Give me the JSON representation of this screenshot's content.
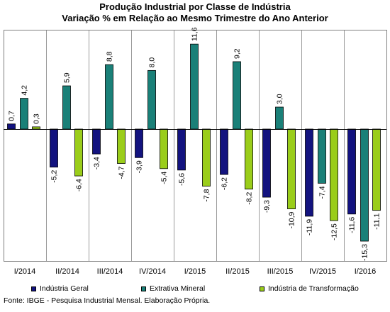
{
  "chart_data": {
    "type": "bar",
    "title": "Produção Industrial por Classe de Indústria",
    "subtitle": "Variação % em Relação ao Mesmo Trimestre do Ano Anterior",
    "categories": [
      "I/2014",
      "II/2014",
      "III/2014",
      "IV/2014",
      "I/2015",
      "II/2015",
      "III/2015",
      "IV/2015",
      "I/2016"
    ],
    "series": [
      {
        "name": "Indústria Geral",
        "color": "#13137f",
        "values": [
          0.7,
          -5.2,
          -3.4,
          -3.9,
          -5.6,
          -6.2,
          -9.3,
          -11.9,
          -11.6
        ],
        "labels": [
          "0,7",
          "-5,2",
          "-3,4",
          "-3,9",
          "-5,6",
          "-6,2",
          "-9,3",
          "-11,9",
          "-11,6"
        ]
      },
      {
        "name": "Extrativa Mineral",
        "color": "#1a8078",
        "values": [
          4.2,
          5.9,
          8.8,
          8.0,
          11.6,
          9.2,
          3.0,
          -7.4,
          -15.3
        ],
        "labels": [
          "4,2",
          "5,9",
          "8,8",
          "8,0",
          "11,6",
          "9,2",
          "3,0",
          "-7,4",
          "-15,3"
        ]
      },
      {
        "name": "Indústria de Transformação",
        "color": "#9acd1a",
        "values": [
          0.3,
          -6.4,
          -4.7,
          -5.4,
          -7.8,
          -8.2,
          -10.9,
          -12.5,
          -11.1
        ],
        "labels": [
          "0,3",
          "-6,4",
          "-4,7",
          "-5,4",
          "-7,8",
          "-8,2",
          "-10,9",
          "-12,5",
          "-11,1"
        ]
      }
    ],
    "xlabel": "",
    "ylabel": "",
    "ylim": [
      -16,
      13
    ],
    "grid": "vertical category separators",
    "legend": "bottom"
  },
  "source": "Fonte: IBGE - Pesquisa Industrial Mensal. Elaboração Própria."
}
